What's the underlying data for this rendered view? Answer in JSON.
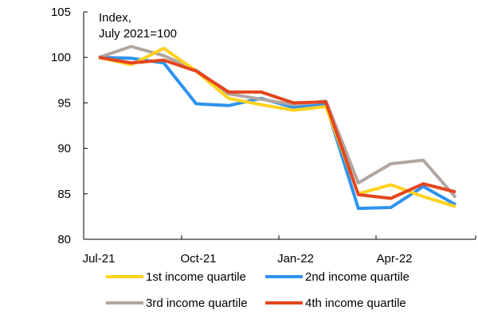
{
  "chart_data": {
    "type": "line",
    "annotation": [
      "Index,",
      "July 2021=100"
    ],
    "x": [
      "Jul-21",
      "Aug-21",
      "Sep-21",
      "Oct-21",
      "Nov-21",
      "Dec-21",
      "Jan-22",
      "Feb-22",
      "Mar-22",
      "Apr-22",
      "May-22",
      "Jun-22"
    ],
    "x_tick_labels": [
      "Jul-21",
      "Oct-21",
      "Jan-22",
      "Apr-22"
    ],
    "ylim": [
      80,
      105
    ],
    "y_ticks": [
      80,
      85,
      90,
      95,
      100,
      105
    ],
    "grid": false,
    "legend": "bottom",
    "series": [
      {
        "name": "1st income quartile",
        "color": "#FFD21E",
        "values": [
          100.0,
          99.2,
          101.0,
          98.5,
          95.5,
          94.8,
          94.2,
          94.6,
          85.0,
          86.0,
          84.7,
          83.6
        ]
      },
      {
        "name": "2nd income quartile",
        "color": "#2E93EE",
        "values": [
          100.0,
          99.9,
          99.4,
          94.9,
          94.7,
          95.5,
          94.5,
          94.8,
          83.4,
          83.5,
          85.8,
          83.8
        ]
      },
      {
        "name": "3rd income quartile",
        "color": "#B2A6A1",
        "values": [
          100.0,
          101.2,
          100.2,
          98.6,
          96.0,
          95.4,
          94.8,
          95.2,
          86.2,
          88.3,
          88.7,
          84.6
        ]
      },
      {
        "name": "4th income quartile",
        "color": "#E4461E",
        "values": [
          100.0,
          99.4,
          99.7,
          98.5,
          96.2,
          96.2,
          95.0,
          95.1,
          84.9,
          84.5,
          86.1,
          85.2
        ]
      }
    ]
  }
}
